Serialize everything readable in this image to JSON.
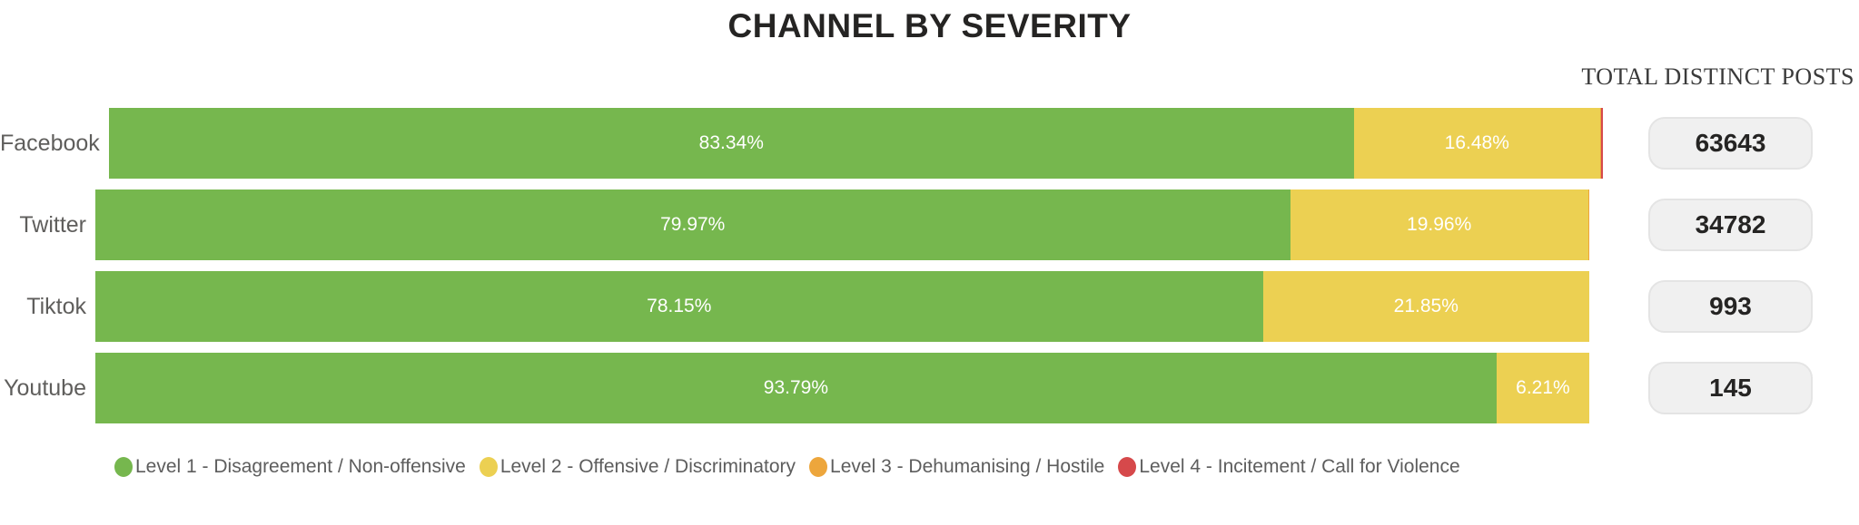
{
  "title": "CHANNEL BY SEVERITY",
  "chart_data": {
    "type": "bar",
    "orientation": "horizontal",
    "stacked": true,
    "percent_scale": true,
    "title": "CHANNEL BY SEVERITY",
    "xlim": [
      0,
      100
    ],
    "legend_position": "bottom",
    "categories": [
      "Facebook",
      "Twitter",
      "Tiktok",
      "Youtube"
    ],
    "series": [
      {
        "name": "Level 1 - Disagreement / Non-offensive",
        "color": "#76B74E",
        "values": [
          83.34,
          79.97,
          78.15,
          93.79
        ]
      },
      {
        "name": "Level 2 - Offensive / Discriminatory",
        "color": "#ECD052",
        "values": [
          16.48,
          19.96,
          21.85,
          6.21
        ]
      },
      {
        "name": "Level 3 - Dehumanising / Hostile",
        "color": "#EDA63C",
        "values": [
          0.09,
          0.07,
          0,
          0
        ]
      },
      {
        "name": "Level 4 - Incitement / Call for Violence",
        "color": "#D6494B",
        "values": [
          0.09,
          0,
          0,
          0
        ]
      }
    ],
    "segment_labels": [
      [
        "83.34%",
        "16.48%"
      ],
      [
        "79.97%",
        "19.96%"
      ],
      [
        "78.15%",
        "21.85%"
      ],
      [
        "93.79%",
        "6.21%"
      ]
    ],
    "totals": {
      "header": "TOTAL DISTINCT POSTS",
      "values": [
        "63643",
        "34782",
        "993",
        "145"
      ]
    }
  },
  "legend": {
    "items": [
      {
        "label": "Level 1 - Disagreement / Non-offensive",
        "color": "#76B74E"
      },
      {
        "label": "Level 2 - Offensive / Discriminatory",
        "color": "#ECD052"
      },
      {
        "label": "Level 3 - Dehumanising / Hostile",
        "color": "#EDA63C"
      },
      {
        "label": "Level 4 - Incitement / Call for Violence",
        "color": "#D6494B"
      }
    ]
  }
}
